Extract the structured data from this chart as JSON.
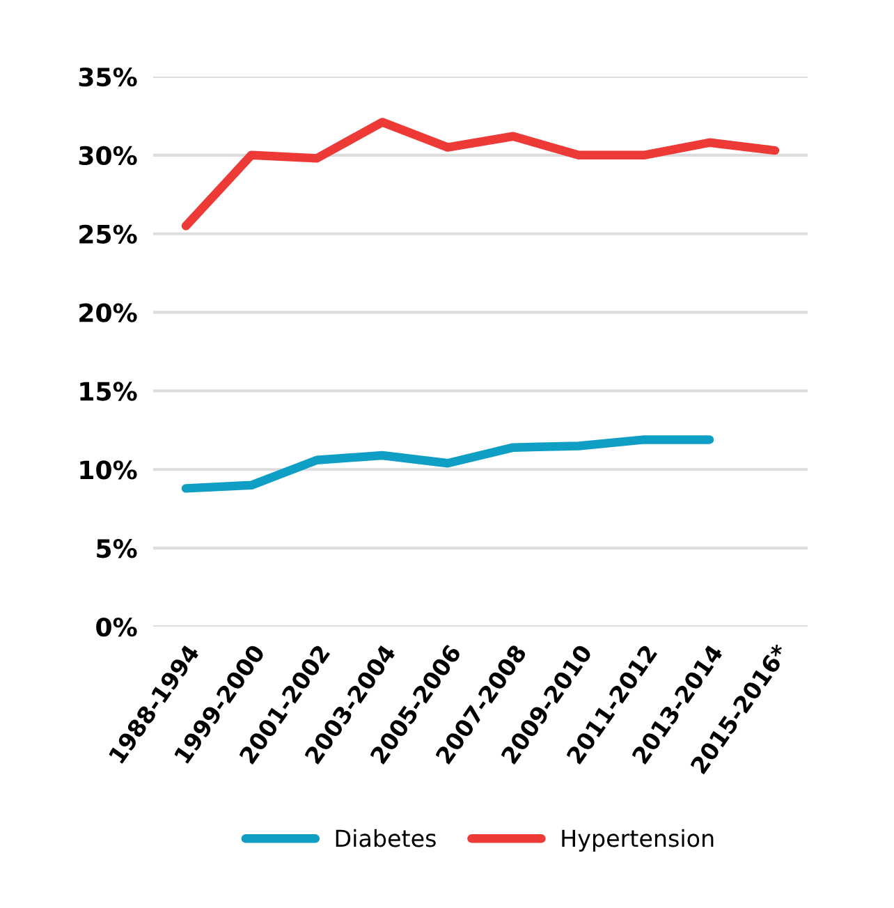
{
  "chart_data": {
    "type": "line",
    "categories": [
      "1988-1994",
      "1999-2000",
      "2001-2002",
      "2003-2004",
      "2005-2006",
      "2007-2008",
      "2009-2010",
      "2011-2012",
      "2013-2014",
      "2015-2016*"
    ],
    "series": [
      {
        "name": "Diabetes",
        "color": "#0f9fc4",
        "values": [
          8.8,
          9.0,
          10.6,
          10.9,
          10.4,
          11.4,
          11.5,
          11.9,
          11.9,
          null
        ]
      },
      {
        "name": "Hypertension",
        "color": "#ee3a36",
        "values": [
          25.5,
          30.0,
          29.8,
          32.1,
          30.5,
          31.2,
          30.0,
          30.0,
          30.8,
          30.3
        ]
      }
    ],
    "ylim": [
      0,
      35
    ],
    "yticks": [
      {
        "value": 0,
        "label": "0%"
      },
      {
        "value": 5,
        "label": "5%"
      },
      {
        "value": 10,
        "label": "10%"
      },
      {
        "value": 15,
        "label": "15%"
      },
      {
        "value": 20,
        "label": "20%"
      },
      {
        "value": 25,
        "label": "25%"
      },
      {
        "value": 30,
        "label": "30%"
      },
      {
        "value": 35,
        "label": "35%"
      }
    ],
    "grid": "y",
    "legend": "bottom",
    "marker": "none",
    "line_style": "solid"
  }
}
